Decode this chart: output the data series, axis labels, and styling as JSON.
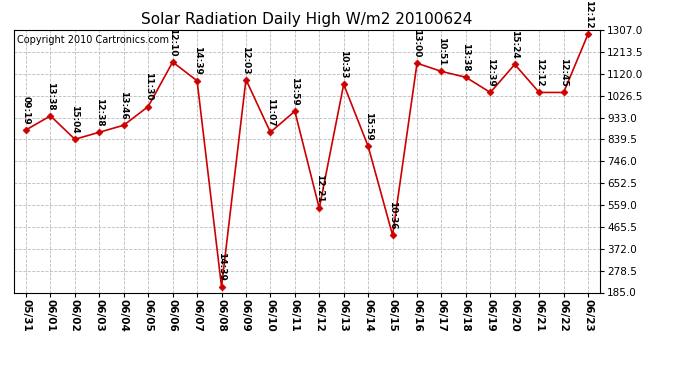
{
  "title": "Solar Radiation Daily High W/m2 20100624",
  "copyright": "Copyright 2010 Cartronics.com",
  "dates": [
    "05/31",
    "06/01",
    "06/02",
    "06/03",
    "06/04",
    "06/05",
    "06/06",
    "06/07",
    "06/08",
    "06/09",
    "06/10",
    "06/11",
    "06/12",
    "06/13",
    "06/14",
    "06/15",
    "06/16",
    "06/17",
    "06/18",
    "06/19",
    "06/20",
    "06/21",
    "06/22",
    "06/23"
  ],
  "values": [
    880,
    940,
    840,
    870,
    900,
    980,
    1170,
    1090,
    210,
    1095,
    870,
    960,
    545,
    1075,
    810,
    430,
    1165,
    1130,
    1105,
    1040,
    1160,
    1040,
    1040,
    1290
  ],
  "labels": [
    "09:19",
    "13:38",
    "15:04",
    "12:38",
    "13:46",
    "11:30",
    "12:10",
    "14:39",
    "14:39",
    "12:03",
    "11:07",
    "13:59",
    "12:21",
    "10:33",
    "15:59",
    "10:36",
    "13:00",
    "10:51",
    "13:38",
    "12:39",
    "15:24",
    "12:12",
    "12:45",
    "12:12"
  ],
  "line_color": "#cc0000",
  "marker_color": "#cc0000",
  "background_color": "#ffffff",
  "grid_color": "#bbbbbb",
  "ylim": [
    185.0,
    1307.0
  ],
  "yticks": [
    185.0,
    278.5,
    372.0,
    465.5,
    559.0,
    652.5,
    746.0,
    839.5,
    933.0,
    1026.5,
    1120.0,
    1213.5,
    1307.0
  ],
  "title_fontsize": 11,
  "label_fontsize": 6.5,
  "copyright_fontsize": 7,
  "tick_fontsize": 7.5
}
